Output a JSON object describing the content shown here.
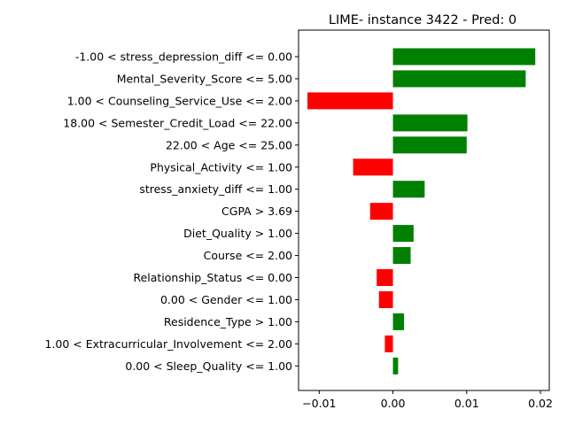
{
  "chart_data": {
    "type": "bar",
    "orientation": "horizontal",
    "title": "LIME- instance 3422 - Pred: 0",
    "xlabel": "",
    "ylabel": "",
    "xlim": [
      -0.0128,
      0.0212
    ],
    "xticks": [
      -0.01,
      0.0,
      0.01,
      0.02
    ],
    "xtick_labels": [
      "−0.01",
      "0.00",
      "0.01",
      "0.02"
    ],
    "grid": false,
    "positive_color": "#008000",
    "negative_color": "#ff0000",
    "categories": [
      "-1.00 < stress_depression_diff <= 0.00",
      "Mental_Severity_Score <= 5.00",
      "1.00 < Counseling_Service_Use <= 2.00",
      "18.00 < Semester_Credit_Load <= 22.00",
      "22.00 < Age <= 25.00",
      "Physical_Activity <= 1.00",
      "stress_anxiety_diff <= 1.00",
      "CGPA > 3.69",
      "Diet_Quality > 1.00",
      "Course <= 2.00",
      "Relationship_Status <= 0.00",
      "0.00 < Gender <= 1.00",
      "Residence_Type > 1.00",
      "1.00 < Extracurricular_Involvement <= 2.00",
      "0.00 < Sleep_Quality <= 1.00"
    ],
    "values": [
      0.0193,
      0.018,
      -0.0116,
      0.0101,
      0.01,
      -0.0054,
      0.0043,
      -0.0031,
      0.0028,
      0.0024,
      -0.0022,
      -0.0019,
      0.0015,
      -0.0011,
      0.0007
    ]
  }
}
